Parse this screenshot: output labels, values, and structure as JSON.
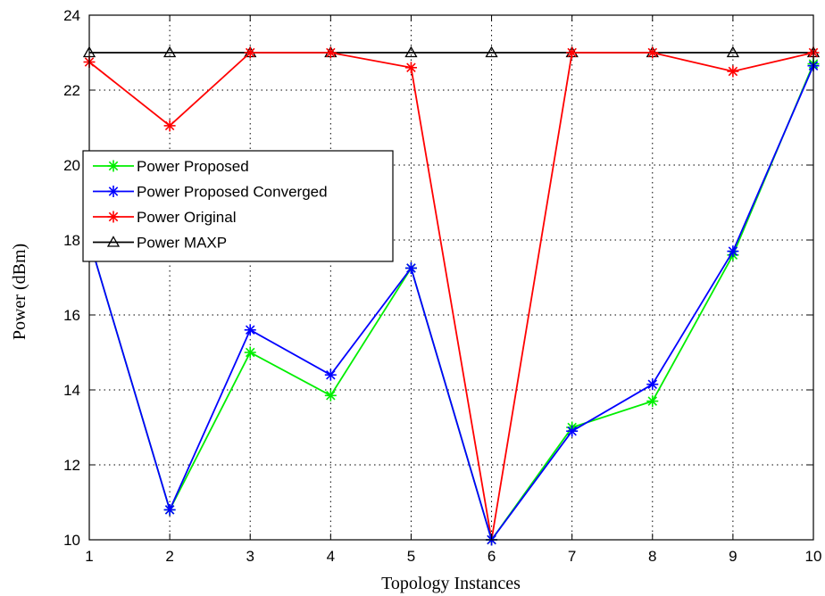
{
  "chart_data": {
    "type": "line",
    "title": "",
    "xlabel": "Topology Instances",
    "ylabel": "Power (dBm)",
    "x": [
      1,
      2,
      3,
      4,
      5,
      6,
      7,
      8,
      9,
      10
    ],
    "xlim": [
      1,
      10
    ],
    "ylim": [
      10,
      24
    ],
    "xticks": [
      "1",
      "2",
      "3",
      "4",
      "5",
      "6",
      "7",
      "8",
      "9",
      "10"
    ],
    "yticks": [
      "10",
      "12",
      "14",
      "16",
      "18",
      "20",
      "22",
      "24"
    ],
    "grid": true,
    "legend_position": "upper-left",
    "series": [
      {
        "name": "Power Proposed",
        "color": "#00ee00",
        "marker": "asterisk",
        "values": [
          18.0,
          10.8,
          15.0,
          13.85,
          17.25,
          10.0,
          13.0,
          13.7,
          17.6,
          22.7
        ]
      },
      {
        "name": "Power Proposed Converged",
        "color": "#0000ff",
        "marker": "asterisk",
        "values": [
          18.0,
          10.8,
          15.6,
          14.4,
          17.25,
          10.0,
          12.9,
          14.15,
          17.7,
          22.65
        ]
      },
      {
        "name": "Power Original",
        "color": "#ff0000",
        "marker": "asterisk",
        "values": [
          22.75,
          21.05,
          23.0,
          23.0,
          22.6,
          10.0,
          23.0,
          23.0,
          22.5,
          23.0
        ]
      },
      {
        "name": "Power MAXP",
        "color": "#000000",
        "marker": "triangle",
        "values": [
          23.0,
          23.0,
          23.0,
          23.0,
          23.0,
          23.0,
          23.0,
          23.0,
          23.0,
          23.0
        ]
      }
    ]
  }
}
